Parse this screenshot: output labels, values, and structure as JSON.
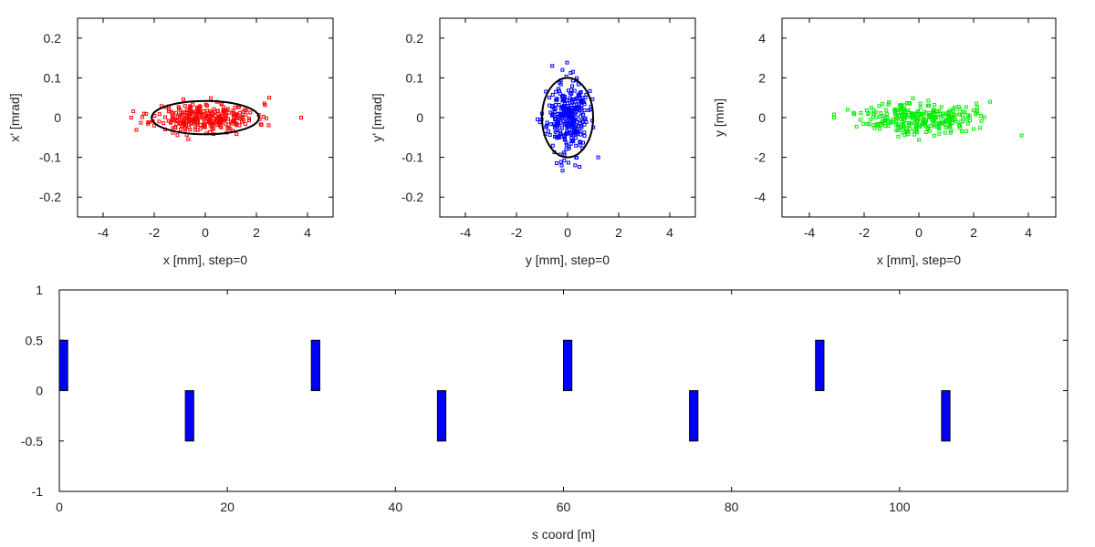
{
  "chart_data": [
    {
      "type": "scatter",
      "xlabel": "x [mm], step=0",
      "ylabel": "x' [mrad]",
      "xlim": [
        -5,
        5
      ],
      "ylim": [
        -0.25,
        0.25
      ],
      "xticks": [
        -4,
        -2,
        0,
        2,
        4
      ],
      "yticks": [
        -0.2,
        -0.1,
        0,
        0.1,
        0.2
      ],
      "color": "#ff0000",
      "ellipse": {
        "center": [
          0,
          0
        ],
        "semi_x": 2.1,
        "semi_y": 0.042
      },
      "points": {
        "n": 300,
        "spread_x": 1.0,
        "spread_y": 0.018,
        "corr": 0,
        "seed": 11,
        "outliers": [
          [
            3.75,
            0.0
          ],
          [
            -2.9,
            0.0
          ],
          [
            2.5,
            0.05
          ],
          [
            -2.4,
            0.01
          ]
        ]
      },
      "grid": false
    },
    {
      "type": "scatter",
      "xlabel": "y [mm], step=0",
      "ylabel": "y' [mrad]",
      "xlim": [
        -5,
        5
      ],
      "ylim": [
        -0.25,
        0.25
      ],
      "xticks": [
        -4,
        -2,
        0,
        2,
        4
      ],
      "yticks": [
        -0.2,
        -0.1,
        0,
        0.1,
        0.2
      ],
      "color": "#0000ff",
      "ellipse": {
        "center": [
          0,
          0
        ],
        "semi_x": 1.0,
        "semi_y": 0.1
      },
      "points": {
        "n": 300,
        "spread_x": 0.4,
        "spread_y": 0.045,
        "corr": 0,
        "seed": 23,
        "outliers": [
          [
            -0.6,
            0.13
          ],
          [
            0.3,
            -0.12
          ],
          [
            -0.2,
            0.12
          ],
          [
            1.2,
            -0.1
          ]
        ]
      },
      "grid": false
    },
    {
      "type": "scatter",
      "xlabel": "x [mm], step=0",
      "ylabel": "y [mm]",
      "xlim": [
        -5,
        5
      ],
      "ylim": [
        -5,
        5
      ],
      "xticks": [
        -4,
        -2,
        0,
        2,
        4
      ],
      "yticks": [
        -4,
        -2,
        0,
        2,
        4
      ],
      "color": "#00ee00",
      "points": {
        "n": 300,
        "spread_x": 1.0,
        "spread_y": 0.4,
        "corr": 0,
        "seed": 37,
        "outliers": [
          [
            3.75,
            -0.9
          ],
          [
            -3.1,
            0.0
          ],
          [
            2.6,
            0.8
          ],
          [
            -2.6,
            0.4
          ]
        ]
      },
      "grid": false
    },
    {
      "type": "bar",
      "xlabel": "s coord [m]",
      "ylabel": "",
      "xlim": [
        0,
        120
      ],
      "ylim": [
        -1,
        1
      ],
      "xticks": [
        0,
        20,
        40,
        60,
        80,
        100
      ],
      "yticks": [
        -1,
        -0.5,
        0,
        0.5,
        1
      ],
      "color": "#0000ff",
      "bar_width_m": 1.0,
      "bars": [
        {
          "s": 0.5,
          "value": 0.5
        },
        {
          "s": 15.5,
          "value": -0.5
        },
        {
          "s": 30.5,
          "value": 0.5
        },
        {
          "s": 45.5,
          "value": -0.5
        },
        {
          "s": 60.5,
          "value": 0.5
        },
        {
          "s": 75.5,
          "value": -0.5
        },
        {
          "s": 90.5,
          "value": 0.5
        },
        {
          "s": 105.5,
          "value": -0.5
        }
      ],
      "grid": false
    }
  ]
}
